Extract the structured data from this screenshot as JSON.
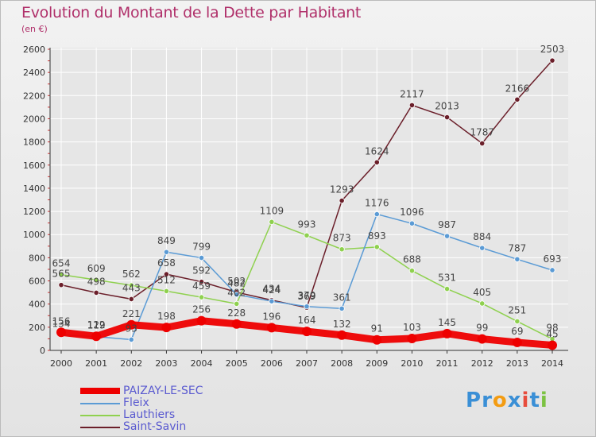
{
  "header": {
    "title": "Evolution du Montant de la Dette par Habitant",
    "unit": "(en €)"
  },
  "logo": {
    "text": "Proxiti",
    "letters": [
      {
        "ch": "P",
        "color": "#3a8fd6"
      },
      {
        "ch": "r",
        "color": "#3a8fd6"
      },
      {
        "ch": "o",
        "color": "#f39c12"
      },
      {
        "ch": "x",
        "color": "#3a8fd6"
      },
      {
        "ch": "i",
        "color": "#e74c3c"
      },
      {
        "ch": "t",
        "color": "#3a8fd6"
      },
      {
        "ch": "i",
        "color": "#7cc242"
      }
    ]
  },
  "colors": {
    "title": "#b0306a",
    "axis": "#333333",
    "grid": "#ffffff",
    "label": "#444444"
  },
  "chart_data": {
    "type": "line",
    "title": "Evolution du Montant de la Dette par Habitant",
    "xlabel": "",
    "ylabel": "(en €)",
    "x": [
      "2000",
      "2001",
      "2002",
      "2003",
      "2004",
      "2005",
      "2006",
      "2007",
      "2008",
      "2009",
      "2010",
      "2011",
      "2012",
      "2013",
      "2014"
    ],
    "ylim": [
      0,
      2600
    ],
    "yticks": [
      0,
      200,
      400,
      600,
      800,
      1000,
      1200,
      1400,
      1600,
      1800,
      2000,
      2200,
      2400,
      2600
    ],
    "grid": true,
    "legend_position": "bottom-left",
    "series": [
      {
        "name": "PAIZAY-LE-SEC",
        "color": "#ee0000",
        "thick": true,
        "values": [
          156,
          122,
          221,
          198,
          256,
          228,
          196,
          164,
          132,
          91,
          103,
          145,
          99,
          69,
          45
        ],
        "labels": [
          "156",
          "122",
          "221",
          "198",
          "256",
          "228",
          "196",
          "164",
          "132",
          "91",
          "103",
          "145",
          "99",
          "69",
          "45"
        ]
      },
      {
        "name": "Fleix",
        "color": "#5b9bd5",
        "thick": false,
        "values": [
          134,
          119,
          93,
          849,
          799,
          482,
          424,
          379,
          361,
          1176,
          1096,
          987,
          884,
          787,
          693
        ],
        "labels": [
          "134",
          "119",
          "93",
          "849",
          "799",
          "482",
          "424",
          "379",
          "361",
          "1176",
          "1096",
          "987",
          "884",
          "787",
          "693"
        ]
      },
      {
        "name": "Lauthiers",
        "color": "#8fd14f",
        "thick": false,
        "values": [
          654,
          609,
          562,
          512,
          459,
          402,
          1109,
          993,
          873,
          893,
          688,
          531,
          405,
          251,
          98
        ],
        "labels": [
          "654",
          "609",
          "562",
          "512",
          "459",
          "402",
          "1109",
          "993",
          "873",
          "893",
          "688",
          "531",
          "405",
          "251",
          "98"
        ]
      },
      {
        "name": "Saint-Savin",
        "color": "#6b1f2a",
        "thick": false,
        "values": [
          565,
          498,
          443,
          658,
          592,
          502,
          434,
          369,
          1293,
          1624,
          2117,
          2013,
          1787,
          2166,
          2503
        ],
        "labels": [
          "565",
          "498",
          "443",
          "658",
          "592",
          "502",
          "434",
          "369",
          "1293",
          "1624",
          "2117",
          "2013",
          "1787",
          "2166",
          "2503"
        ]
      }
    ]
  }
}
